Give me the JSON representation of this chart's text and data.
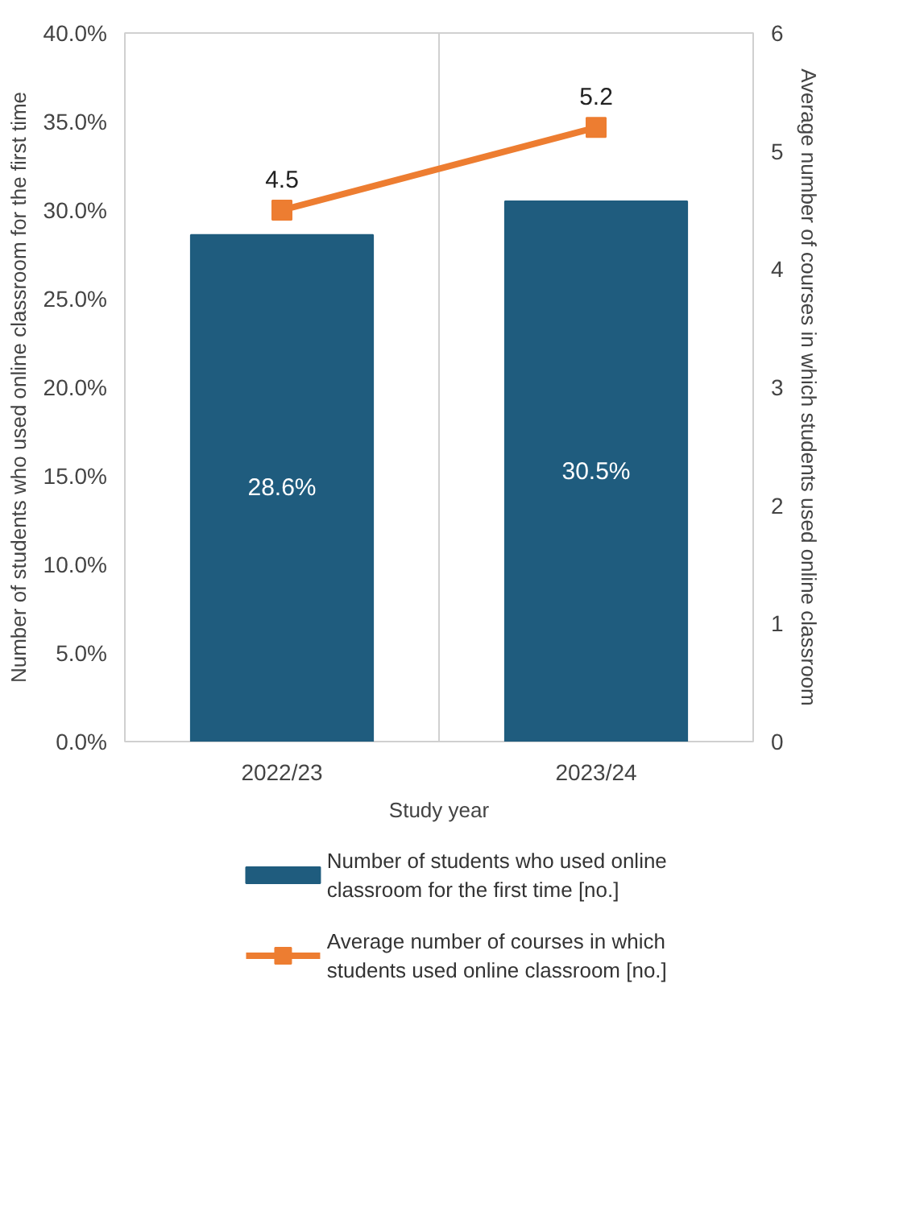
{
  "chart_data": {
    "type": "bar",
    "categories": [
      "2022/23",
      "2023/24"
    ],
    "xlabel": "Study year",
    "ylabel": "Number of students who used online classroom for the first time",
    "y2label": "Average number of courses in which students used online classroom",
    "series": [
      {
        "name": "Number of students who used online classroom for the first time [no.]",
        "color": "#1f5c7e",
        "values": [
          28.6,
          30.5
        ],
        "value_labels": [
          "28.6%",
          "30.5%"
        ]
      },
      {
        "name": "Average number of courses in which students used  online classroom [no.]",
        "type": "line",
        "axis": "y2",
        "color": "#ed7d31",
        "marker": "square",
        "values": [
          4.5,
          5.2
        ],
        "value_labels": [
          "4.5",
          "5.2"
        ]
      }
    ],
    "ylim": [
      0,
      40
    ],
    "yticks": [
      {
        "value": 0,
        "label": "0.0%"
      },
      {
        "value": 5,
        "label": "5.0%"
      },
      {
        "value": 10,
        "label": "10.0%"
      },
      {
        "value": 15,
        "label": "15.0%"
      },
      {
        "value": 20,
        "label": "20.0%"
      },
      {
        "value": 25,
        "label": "25.0%"
      },
      {
        "value": 30,
        "label": "30.0%"
      },
      {
        "value": 35,
        "label": "35.0%"
      },
      {
        "value": 40,
        "label": "40.0%"
      }
    ],
    "y2lim": [
      0,
      6
    ],
    "y2ticks": [
      0,
      1,
      2,
      3,
      4,
      5,
      6
    ],
    "grid": "x",
    "legend": "bottom"
  }
}
